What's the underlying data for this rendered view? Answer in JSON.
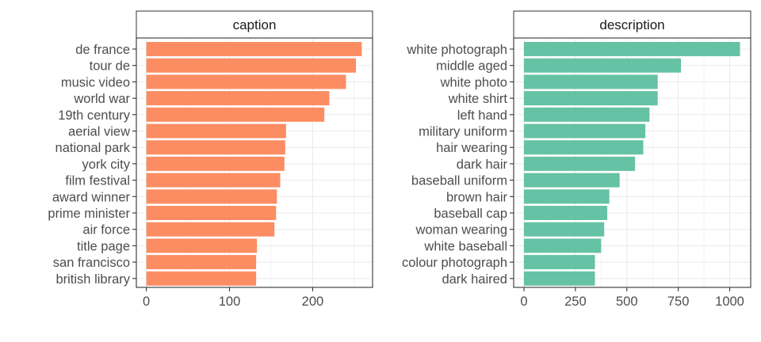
{
  "chart_data": [
    {
      "type": "bar",
      "orientation": "horizontal",
      "title": "caption",
      "color": "#FC8D62",
      "categories": [
        "de france",
        "tour de",
        "music video",
        "world war",
        "19th century",
        "aerial view",
        "national park",
        "york city",
        "film festival",
        "award winner",
        "prime minister",
        "air force",
        "title page",
        "san francisco",
        "british library"
      ],
      "values": [
        259,
        252,
        240,
        220,
        214,
        168,
        167,
        166,
        161,
        157,
        156,
        154,
        133,
        132,
        132
      ],
      "xlim": [
        -12,
        272
      ],
      "xticks": [
        0,
        100,
        200
      ],
      "grid": true
    },
    {
      "type": "bar",
      "orientation": "horizontal",
      "title": "description",
      "color": "#66C2A5",
      "categories": [
        "white photograph",
        "middle aged",
        "white photo",
        "white shirt",
        "left hand",
        "military uniform",
        "hair wearing",
        "dark hair",
        "baseball uniform",
        "brown hair",
        "baseball cap",
        "woman wearing",
        "white baseball",
        "colour photograph",
        "dark haired"
      ],
      "values": [
        1050,
        763,
        650,
        650,
        610,
        590,
        580,
        540,
        465,
        415,
        405,
        390,
        375,
        345,
        345
      ],
      "xlim": [
        -50,
        1102
      ],
      "xticks": [
        0,
        250,
        500,
        750,
        1000
      ],
      "grid": true
    }
  ]
}
